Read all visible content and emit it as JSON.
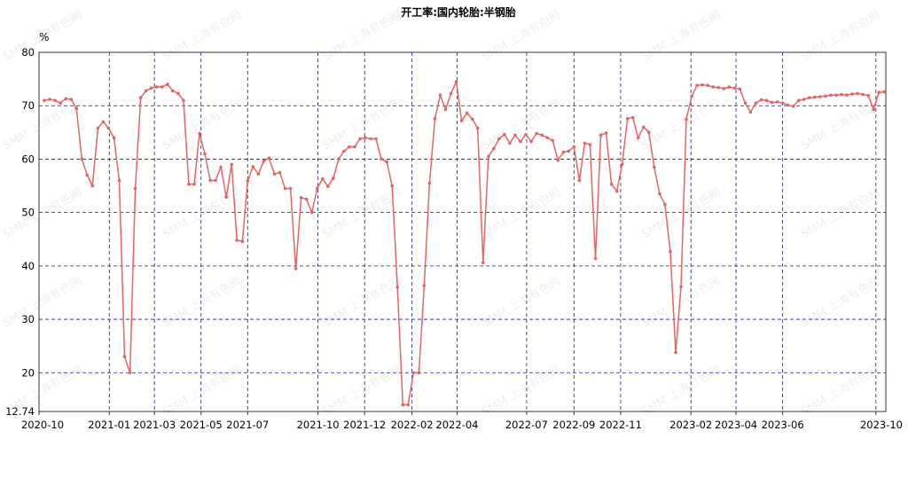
{
  "watermark": "SMM 上海有色网",
  "chart_data": {
    "type": "line",
    "title": "开工率:国内轮胎:半钢胎",
    "ylabel": "%",
    "xlabel": "",
    "ylim": [
      12.74,
      80
    ],
    "yticks": [
      12.74,
      20,
      30,
      40,
      50,
      60,
      70,
      80
    ],
    "xlim": [
      "2020-10-01",
      "2023-10-14"
    ],
    "xticks": [
      "2020-10",
      "2021-01",
      "2021-03",
      "2021-05",
      "2021-07",
      "2021-10",
      "2021-12",
      "2022-02",
      "2022-04",
      "2022-07",
      "2022-09",
      "2022-11",
      "2023-02",
      "2023-04",
      "2023-06",
      "2023-10"
    ],
    "grid": true,
    "line_color": "#e06666",
    "grid_color": "#1a1a80",
    "series": [
      {
        "x": [
          "2020-10-08",
          "2020-10-15",
          "2020-10-22",
          "2020-10-29",
          "2020-11-05",
          "2020-11-12",
          "2020-11-19",
          "2020-11-26",
          "2020-12-03",
          "2020-12-10",
          "2020-12-17",
          "2020-12-24",
          "2020-12-31",
          "2021-01-07",
          "2021-01-14",
          "2021-01-21",
          "2021-01-28",
          "2021-02-04",
          "2021-02-11",
          "2021-02-18",
          "2021-02-25",
          "2021-03-04",
          "2021-03-11",
          "2021-03-18",
          "2021-03-25",
          "2021-04-01",
          "2021-04-08",
          "2021-04-15",
          "2021-04-22",
          "2021-04-29",
          "2021-05-06",
          "2021-05-13",
          "2021-05-20",
          "2021-05-27",
          "2021-06-03",
          "2021-06-10",
          "2021-06-17",
          "2021-06-24",
          "2021-07-01",
          "2021-07-08",
          "2021-07-15",
          "2021-07-22",
          "2021-07-29",
          "2021-08-05",
          "2021-08-12",
          "2021-08-19",
          "2021-08-26",
          "2021-09-02",
          "2021-09-09",
          "2021-09-16",
          "2021-09-23",
          "2021-09-30",
          "2021-10-07",
          "2021-10-14",
          "2021-10-21",
          "2021-10-28",
          "2021-11-04",
          "2021-11-11",
          "2021-11-18",
          "2021-11-25",
          "2021-12-02",
          "2021-12-09",
          "2021-12-16",
          "2021-12-23",
          "2021-12-30",
          "2022-01-06",
          "2022-01-13",
          "2022-01-20",
          "2022-01-27",
          "2022-02-03",
          "2022-02-10",
          "2022-02-17",
          "2022-02-24",
          "2022-03-03",
          "2022-03-10",
          "2022-03-17",
          "2022-03-24",
          "2022-03-31",
          "2022-04-07",
          "2022-04-14",
          "2022-04-21",
          "2022-04-28",
          "2022-05-05",
          "2022-05-12",
          "2022-05-19",
          "2022-05-26",
          "2022-06-02",
          "2022-06-09",
          "2022-06-16",
          "2022-06-23",
          "2022-06-30",
          "2022-07-07",
          "2022-07-14",
          "2022-07-21",
          "2022-07-28",
          "2022-08-04",
          "2022-08-11",
          "2022-08-18",
          "2022-08-25",
          "2022-09-01",
          "2022-09-08",
          "2022-09-15",
          "2022-09-22",
          "2022-09-29",
          "2022-10-06",
          "2022-10-13",
          "2022-10-20",
          "2022-10-27",
          "2022-11-03",
          "2022-11-10",
          "2022-11-17",
          "2022-11-24",
          "2022-12-01",
          "2022-12-08",
          "2022-12-15",
          "2022-12-22",
          "2022-12-29",
          "2023-01-05",
          "2023-01-12",
          "2023-01-19",
          "2023-01-26",
          "2023-02-02",
          "2023-02-09",
          "2023-02-16",
          "2023-02-23",
          "2023-03-02",
          "2023-03-09",
          "2023-03-16",
          "2023-03-23",
          "2023-03-30",
          "2023-04-06",
          "2023-04-13",
          "2023-04-20",
          "2023-04-27",
          "2023-05-04",
          "2023-05-11",
          "2023-05-18",
          "2023-05-25",
          "2023-06-01",
          "2023-06-08",
          "2023-06-15",
          "2023-06-22",
          "2023-06-29",
          "2023-07-06",
          "2023-07-13",
          "2023-07-20",
          "2023-07-27",
          "2023-08-03",
          "2023-08-10",
          "2023-08-17",
          "2023-08-24",
          "2023-08-31",
          "2023-09-07",
          "2023-09-14",
          "2023-09-21",
          "2023-09-28",
          "2023-10-05",
          "2023-10-12"
        ],
        "y": [
          71.0,
          71.2,
          71.0,
          70.5,
          71.3,
          71.2,
          69.5,
          60.0,
          57.0,
          55.0,
          65.8,
          67.0,
          65.8,
          64.0,
          56.0,
          23.0,
          20.0,
          54.5,
          71.5,
          72.8,
          73.3,
          73.5,
          73.5,
          74.0,
          72.8,
          72.3,
          71.0,
          55.3,
          55.3,
          64.8,
          61.0,
          56.0,
          56.0,
          58.5,
          52.9,
          59.0,
          44.8,
          44.6,
          55.9,
          58.6,
          57.2,
          59.6,
          60.2,
          57.2,
          57.5,
          54.5,
          54.5,
          39.5,
          52.8,
          52.5,
          50.0,
          54.5,
          56.3,
          54.9,
          56.4,
          60.0,
          61.5,
          62.3,
          62.3,
          63.8,
          64.0,
          63.8,
          63.8,
          60.0,
          59.5,
          55.0,
          36.0,
          14.0,
          14.0,
          20.0,
          20.0,
          36.3,
          55.5,
          67.6,
          72.0,
          69.3,
          72.3,
          74.5,
          67.2,
          68.6,
          67.5,
          65.8,
          40.6,
          60.5,
          62.0,
          63.8,
          64.6,
          63.0,
          64.5,
          63.3,
          64.6,
          63.3,
          64.8,
          64.5,
          64.0,
          63.5,
          59.8,
          61.3,
          61.5,
          62.3,
          56.0,
          63.0,
          62.7,
          41.4,
          64.5,
          64.9,
          55.3,
          54.0,
          59.0,
          67.6,
          67.8,
          64.0,
          66.0,
          65.0,
          58.5,
          53.5,
          51.5,
          42.7,
          23.8,
          36.1,
          67.5,
          71.8,
          73.8,
          73.9,
          73.8,
          73.5,
          73.4,
          73.2,
          73.5,
          73.3,
          73.1,
          70.5,
          68.8,
          70.5,
          71.1,
          71.0,
          70.6,
          70.7,
          70.5,
          70.1,
          69.9,
          71.0,
          71.2,
          71.5,
          71.6,
          71.7,
          71.8,
          72.0,
          72.0,
          72.1,
          72.0,
          72.2,
          72.3,
          72.1,
          71.9,
          69.3,
          72.5,
          72.6
        ]
      }
    ]
  }
}
